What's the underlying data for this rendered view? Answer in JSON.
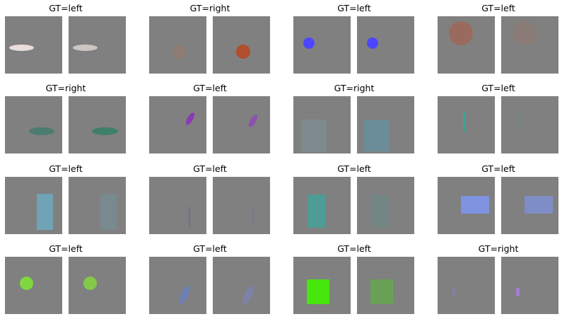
{
  "background_color": "#ffffff",
  "panel_color": "#808080",
  "pairs": [
    {
      "title": "GT=left",
      "shape": "ellipse",
      "left_color": "#e8dcdc",
      "right_color": "#cfc4c4",
      "rotate": 0
    },
    {
      "title": "GT=right",
      "shape": "circle",
      "left_color": "#8f7c74",
      "right_color": "#b04f2c",
      "rotate": 0
    },
    {
      "title": "GT=left",
      "shape": "circle",
      "left_color": "#4c46ff",
      "right_color": "#4c46ff",
      "rotate": 0
    },
    {
      "title": "GT=left",
      "shape": "circle",
      "left_color": "#9b6a5e",
      "right_color": "#8a7b76",
      "rotate": 0
    },
    {
      "title": "GT=right",
      "shape": "ellipse",
      "left_color": "#4b7c6d",
      "right_color": "#3f7f6a",
      "rotate": 0
    },
    {
      "title": "GT=left",
      "shape": "ellipse",
      "left_color": "#8a3cb3",
      "right_color": "#8b52ad",
      "rotate": -60
    },
    {
      "title": "GT=right",
      "shape": "rectangle",
      "left_color": "#7f8a8f",
      "right_color": "#6a8d99",
      "rotate": 0
    },
    {
      "title": "GT=left",
      "shape": "line",
      "left_color": "#3fa395",
      "right_color": "#5b8f87",
      "rotate": 0
    },
    {
      "title": "GT=left",
      "shape": "rectangle",
      "left_color": "#70a3b6",
      "right_color": "#788a90",
      "rotate": 0
    },
    {
      "title": "GT=left",
      "shape": "line",
      "left_color": "#6c6d96",
      "right_color": "#787a8a",
      "rotate": 0
    },
    {
      "title": "GT=left",
      "shape": "rectangle",
      "left_color": "#4f9c96",
      "right_color": "#748684",
      "rotate": 0
    },
    {
      "title": "GT=left",
      "shape": "rectangle",
      "left_color": "#7f93e0",
      "right_color": "#7f8dc6",
      "rotate": 0
    },
    {
      "title": "GT=left",
      "shape": "circle",
      "left_color": "#7fd63f",
      "right_color": "#84c84a",
      "rotate": 0
    },
    {
      "title": "GT=left",
      "shape": "ellipse",
      "left_color": "#6e7fb5",
      "right_color": "#7c82a8",
      "rotate": -65
    },
    {
      "title": "GT=left",
      "shape": "square",
      "left_color": "#47e60c",
      "right_color": "#68a156",
      "rotate": 0
    },
    {
      "title": "GT=right",
      "shape": "rectangle",
      "left_color": "#8a7ca7",
      "right_color": "#a37cd6",
      "rotate": 0
    }
  ]
}
